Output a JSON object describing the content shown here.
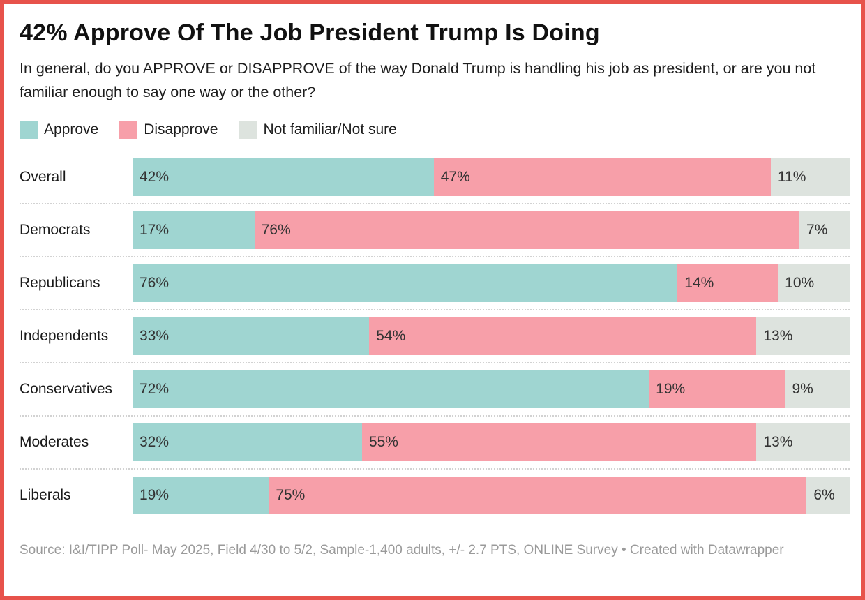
{
  "header": {
    "title": "42% Approve Of The Job President Trump Is Doing",
    "description": "In general, do you APPROVE or DISAPPROVE of the way Donald Trump is handling his job as president, or are you not familiar enough to say one way or the other?"
  },
  "legend": [
    {
      "label": "Approve",
      "color": "#9fd5d1"
    },
    {
      "label": "Disapprove",
      "color": "#f79fa9"
    },
    {
      "label": "Not familiar/Not sure",
      "color": "#dde3de"
    }
  ],
  "chart_data": {
    "type": "bar",
    "stacked": true,
    "orientation": "horizontal",
    "unit": "%",
    "title": "42% Approve Of The Job President Trump Is Doing",
    "categories": [
      "Overall",
      "Democrats",
      "Republicans",
      "Independents",
      "Conservatives",
      "Moderates",
      "Liberals"
    ],
    "series": [
      {
        "name": "Approve",
        "color": "#9fd5d1",
        "values": [
          42,
          17,
          76,
          33,
          72,
          32,
          19
        ]
      },
      {
        "name": "Disapprove",
        "color": "#f79fa9",
        "values": [
          47,
          76,
          14,
          54,
          19,
          55,
          75
        ]
      },
      {
        "name": "Not familiar/Not sure",
        "color": "#dde3de",
        "values": [
          11,
          7,
          10,
          13,
          9,
          13,
          6
        ]
      }
    ],
    "xlim": [
      0,
      100
    ],
    "grid": false,
    "legend_position": "top",
    "value_labels": "inside-left"
  },
  "footer": {
    "source": "Source: I&I/TIPP Poll- May 2025, Field 4/30 to 5/2, Sample-1,400 adults, +/- 2.7 PTS, ONLINE Survey • Created with Datawrapper"
  },
  "colors": {
    "frame_border": "#e7524b",
    "approve": "#9fd5d1",
    "disapprove": "#f79fa9",
    "not_sure": "#dde3de",
    "separator": "#d2d2d2",
    "title_text": "#111111",
    "body_text": "#1d1d1d",
    "value_text": "#333333",
    "footer_text": "#9a9a9a"
  }
}
